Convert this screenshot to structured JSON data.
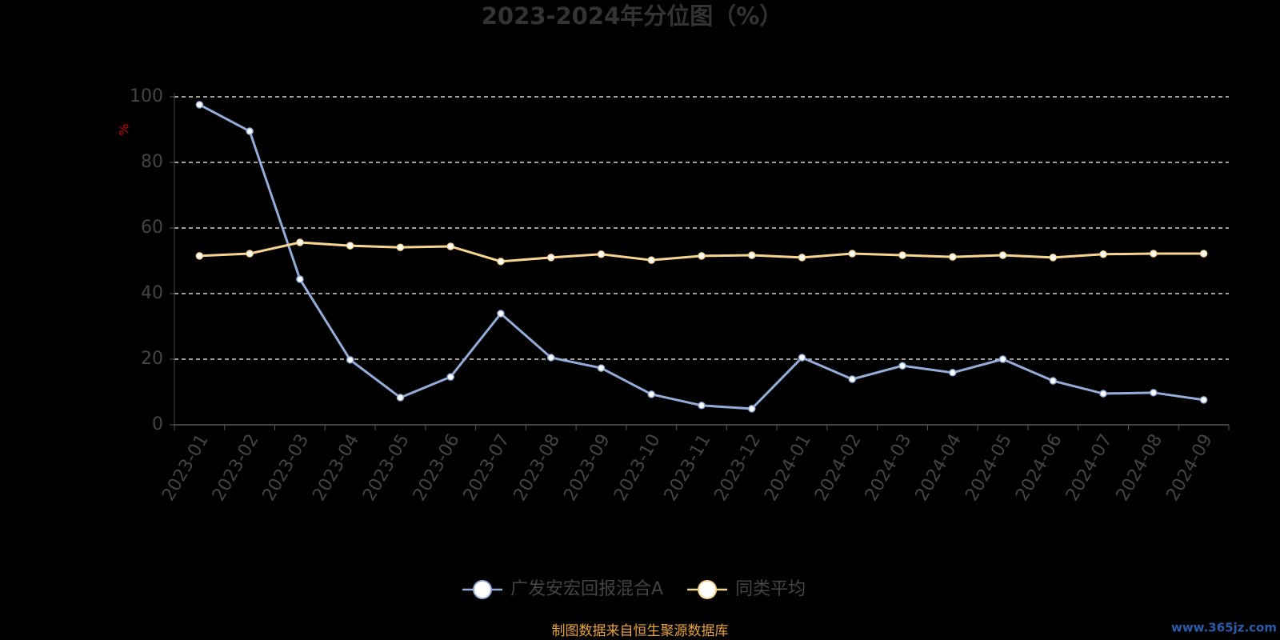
{
  "chart_data": {
    "type": "line",
    "title": "2023-2024年分位图（%）",
    "y_label": "%",
    "categories": [
      "2023-01",
      "2023-02",
      "2023-03",
      "2023-04",
      "2023-05",
      "2023-06",
      "2023-07",
      "2023-08",
      "2023-09",
      "2023-10",
      "2023-11",
      "2023-12",
      "2024-01",
      "2024-02",
      "2024-03",
      "2024-04",
      "2024-05",
      "2024-06",
      "2024-07",
      "2024-08",
      "2024-09"
    ],
    "series": [
      {
        "name": "广发安宏回报混合A",
        "color": "#93acd8",
        "values": [
          97.6,
          89.5,
          44.4,
          19.8,
          8.3,
          14.6,
          33.9,
          20.5,
          17.3,
          9.3,
          5.9,
          4.9,
          20.5,
          13.9,
          18,
          15.9,
          20,
          13.4,
          9.5,
          9.8,
          7.6
        ]
      },
      {
        "name": "同类平均",
        "color": "#f7d591",
        "values": [
          51.5,
          52.2,
          55.6,
          54.6,
          54.1,
          54.4,
          49.8,
          51,
          52,
          50.2,
          51.5,
          51.7,
          51,
          52.2,
          51.7,
          51.2,
          51.7,
          51,
          52,
          52.2,
          52.2
        ]
      }
    ],
    "ylim": [
      0,
      100
    ],
    "yticks": [
      0,
      20,
      40,
      60,
      80,
      100
    ],
    "grid": true,
    "footer": "制图数据来自恒生聚源数据库",
    "watermark": "www.365jz.com"
  }
}
